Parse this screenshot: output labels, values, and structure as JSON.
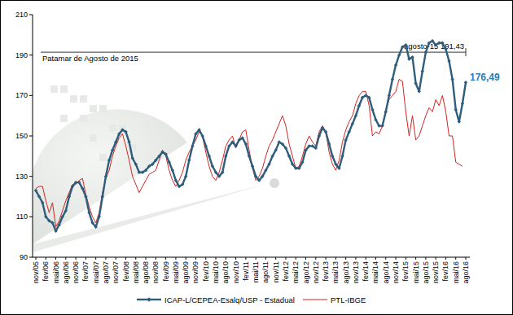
{
  "chart_data": {
    "type": "line",
    "categories": [
      "nov/05",
      null,
      null,
      "fev/06",
      null,
      null,
      "mai/06",
      null,
      null,
      "ago/06",
      null,
      null,
      "nov/06",
      null,
      null,
      "fev/07",
      null,
      null,
      "mai/07",
      null,
      null,
      "ago/07",
      null,
      null,
      "nov/07",
      null,
      null,
      "fev/08",
      null,
      null,
      "mai/08",
      null,
      null,
      "ago/08",
      null,
      null,
      "nov/08",
      null,
      null,
      "fev/09",
      null,
      null,
      "mai/09",
      null,
      null,
      "ago/09",
      null,
      null,
      "nov/09",
      null,
      null,
      "fev/10",
      null,
      null,
      "mai/10",
      null,
      null,
      "ago/10",
      null,
      null,
      "nov/10",
      null,
      null,
      "fev/11",
      null,
      null,
      "mai/11",
      null,
      null,
      "ago/11",
      null,
      null,
      "nov/11",
      null,
      null,
      "fev/12",
      null,
      null,
      "mai/12",
      null,
      null,
      "ago/12",
      null,
      null,
      "nov/12",
      null,
      null,
      "fev/13",
      null,
      null,
      "mai/13",
      null,
      null,
      "ago/13",
      null,
      null,
      "nov/13",
      null,
      null,
      "fev/14",
      null,
      null,
      "mai/14",
      null,
      null,
      "ago/14",
      null,
      null,
      "nov/14",
      null,
      null,
      "fev/15",
      null,
      null,
      "mai/15",
      null,
      null,
      "ago/15",
      null,
      null,
      "nov/15",
      null,
      null,
      "fev/16",
      null,
      null,
      "mai/16",
      null,
      null,
      "ago/16"
    ],
    "series": [
      {
        "name": "ICAP-L/CEPEA-Esalq/USP - Estadual",
        "color": "#2f5e7c",
        "marker": "diamond",
        "line_style": "solid",
        "values": [
          123,
          120,
          117,
          110,
          108,
          107,
          103,
          106,
          110,
          113,
          120,
          125,
          127,
          127,
          124,
          120,
          112,
          107,
          105,
          110,
          120,
          130,
          138,
          143,
          147,
          151,
          153,
          152,
          147,
          139,
          136,
          132,
          132,
          133,
          135,
          136,
          138,
          140,
          142,
          141,
          137,
          133,
          128,
          125,
          126,
          130,
          138,
          145,
          151,
          153,
          150,
          145,
          140,
          135,
          132,
          130,
          132,
          140,
          145,
          147,
          145,
          148,
          149,
          146,
          140,
          135,
          130,
          128,
          130,
          133,
          136,
          140,
          143,
          147,
          146,
          144,
          140,
          136,
          134,
          134,
          137,
          143,
          145,
          145,
          144,
          150,
          154,
          152,
          146,
          140,
          136,
          134,
          140,
          148,
          152,
          156,
          160,
          165,
          169,
          170,
          169,
          163,
          158,
          155,
          155,
          162,
          170,
          178,
          185,
          190,
          194,
          195,
          188,
          189,
          176,
          172,
          182,
          191.43,
          196,
          197,
          195,
          196,
          196,
          193,
          187,
          178,
          163,
          157,
          166,
          176.49
        ],
        "value_labels": [
          null,
          null,
          null,
          null,
          null,
          null,
          null,
          null,
          null,
          null,
          null,
          null,
          null,
          null,
          null,
          null,
          null,
          null,
          null,
          null,
          null,
          null,
          null,
          null,
          null,
          null,
          null,
          null,
          null,
          null,
          null,
          null,
          null,
          null,
          null,
          null,
          null,
          null,
          null,
          null,
          null,
          null,
          null,
          null,
          null,
          null,
          null,
          null,
          null,
          null,
          null,
          null,
          null,
          null,
          null,
          null,
          null,
          null,
          null,
          null,
          null,
          null,
          null,
          null,
          null,
          null,
          null,
          null,
          null,
          null,
          null,
          null,
          null,
          null,
          null,
          null,
          null,
          null,
          null,
          null,
          null,
          null,
          null,
          null,
          null,
          null,
          null,
          null,
          null,
          null,
          null,
          null,
          null,
          null,
          null,
          null,
          null,
          null,
          null,
          null,
          null,
          null,
          null,
          null,
          null,
          null,
          null,
          null,
          null,
          null,
          null,
          null,
          null,
          null,
          null,
          null,
          null,
          null,
          null,
          null,
          null,
          null,
          null,
          null,
          null,
          null,
          null,
          null,
          null,
          "176,49"
        ]
      },
      {
        "name": "PTL-IBGE",
        "color": "#d42222",
        "marker": "none",
        "line_style": "solid",
        "values": [
          124,
          125,
          125,
          118,
          112,
          117,
          105,
          108,
          113,
          118,
          122,
          126,
          126,
          128,
          129,
          121,
          115,
          110,
          107,
          112,
          122,
          129,
          133,
          140,
          145,
          149,
          151,
          145,
          138,
          130,
          126,
          122,
          125,
          128,
          131,
          132,
          133,
          138,
          143,
          140,
          133,
          128,
          125,
          128,
          132,
          138,
          142,
          145,
          148,
          152,
          150,
          142,
          135,
          130,
          128,
          132,
          138,
          145,
          148,
          150,
          144,
          148,
          152,
          153,
          143,
          134,
          128,
          130,
          134,
          140,
          145,
          148,
          152,
          156,
          160,
          155,
          146,
          140,
          134,
          135,
          140,
          146,
          150,
          147,
          145,
          152,
          155,
          152,
          142,
          136,
          133,
          138,
          147,
          153,
          157,
          160,
          166,
          170,
          172,
          172,
          165,
          150,
          152,
          151,
          155,
          163,
          168,
          170,
          172,
          178,
          177,
          162,
          150,
          160,
          148,
          150,
          155,
          160,
          164,
          162,
          168,
          165,
          170,
          162,
          150,
          150,
          137,
          136,
          135,
          null
        ]
      }
    ],
    "reference_lines": [
      {
        "value": 191.43,
        "label": "Patamar de Agosto de 2015",
        "value_label": "agosto-15 191,43"
      }
    ],
    "ylim": [
      90,
      210
    ],
    "yticks": [
      90,
      110,
      130,
      150,
      170,
      190,
      210
    ],
    "grid": false,
    "legend": "bottom"
  }
}
